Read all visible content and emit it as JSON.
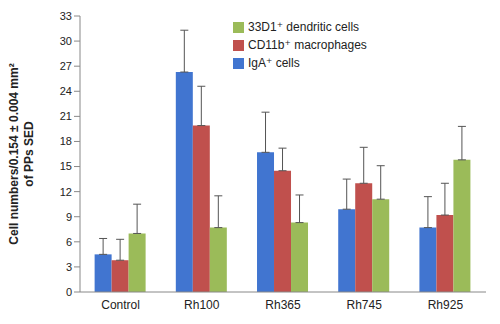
{
  "chart_data": {
    "type": "bar",
    "y_label": [
      "Cell numbers/0.154 ± 0.004 mm²",
      "of PPs SED"
    ],
    "categories": [
      "Control",
      "Rh100",
      "Rh365",
      "Rh745",
      "Rh925"
    ],
    "series": [
      {
        "name": "IgA⁺ cells",
        "color": "#4175d0",
        "values": [
          4.5,
          26.3,
          16.7,
          9.9,
          7.7
        ],
        "errors": [
          1.9,
          5.0,
          4.8,
          3.6,
          3.7
        ]
      },
      {
        "name": "CD11b⁺ macrophages",
        "color": "#c0504d",
        "values": [
          3.8,
          19.9,
          14.5,
          13.0,
          9.2
        ],
        "errors": [
          2.5,
          4.7,
          2.7,
          4.3,
          3.8
        ]
      },
      {
        "name": "33D1⁺ dendritic cells",
        "color": "#9bbb59",
        "values": [
          7.0,
          7.7,
          8.3,
          11.1,
          15.8
        ],
        "errors": [
          3.5,
          3.8,
          3.3,
          4.0,
          4.0
        ]
      }
    ],
    "ylim": [
      0,
      33
    ],
    "yticks": [
      0,
      3,
      6,
      9,
      12,
      15,
      18,
      21,
      24,
      27,
      30,
      33
    ],
    "grid": false,
    "legend": "upper center"
  }
}
